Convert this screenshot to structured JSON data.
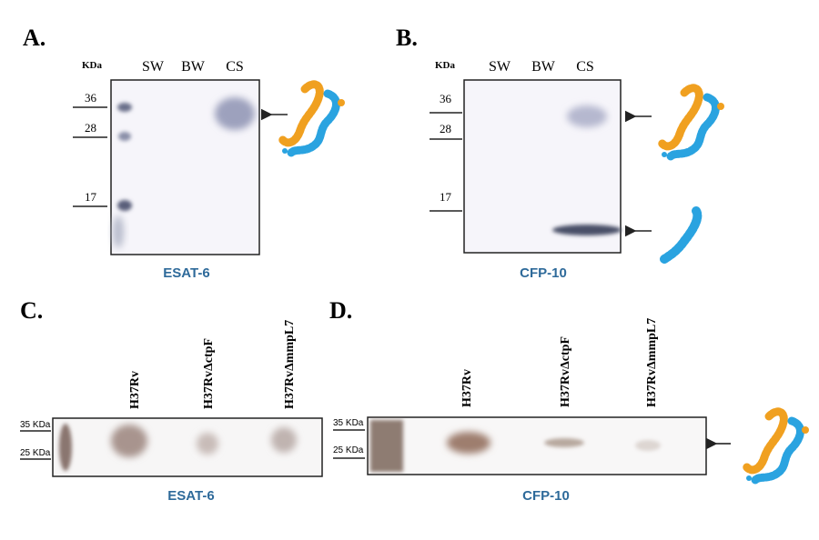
{
  "panels": [
    {
      "label": "A.",
      "unit": "KDa",
      "lanes": [
        "SW",
        "BW",
        "CS"
      ],
      "markers": [
        "36",
        "28",
        "17"
      ],
      "caption": "ESAT-6"
    },
    {
      "label": "B.",
      "unit": "KDa",
      "lanes": [
        "SW",
        "BW",
        "CS"
      ],
      "markers": [
        "36",
        "28",
        "17"
      ],
      "caption": "CFP-10"
    },
    {
      "label": "C.",
      "lanes": [
        "H37Rv",
        "H37RvΔctpF",
        "H37RvΔmmpL7"
      ],
      "markers": [
        "35 KDa",
        "25 KDa"
      ],
      "caption": "ESAT-6"
    },
    {
      "label": "D.",
      "lanes": [
        "H37Rv",
        "H37RvΔctpF",
        "H37RvΔmmpL7"
      ],
      "markers": [
        "35 KDa",
        "25 KDa"
      ],
      "caption": "CFP-10"
    }
  ]
}
